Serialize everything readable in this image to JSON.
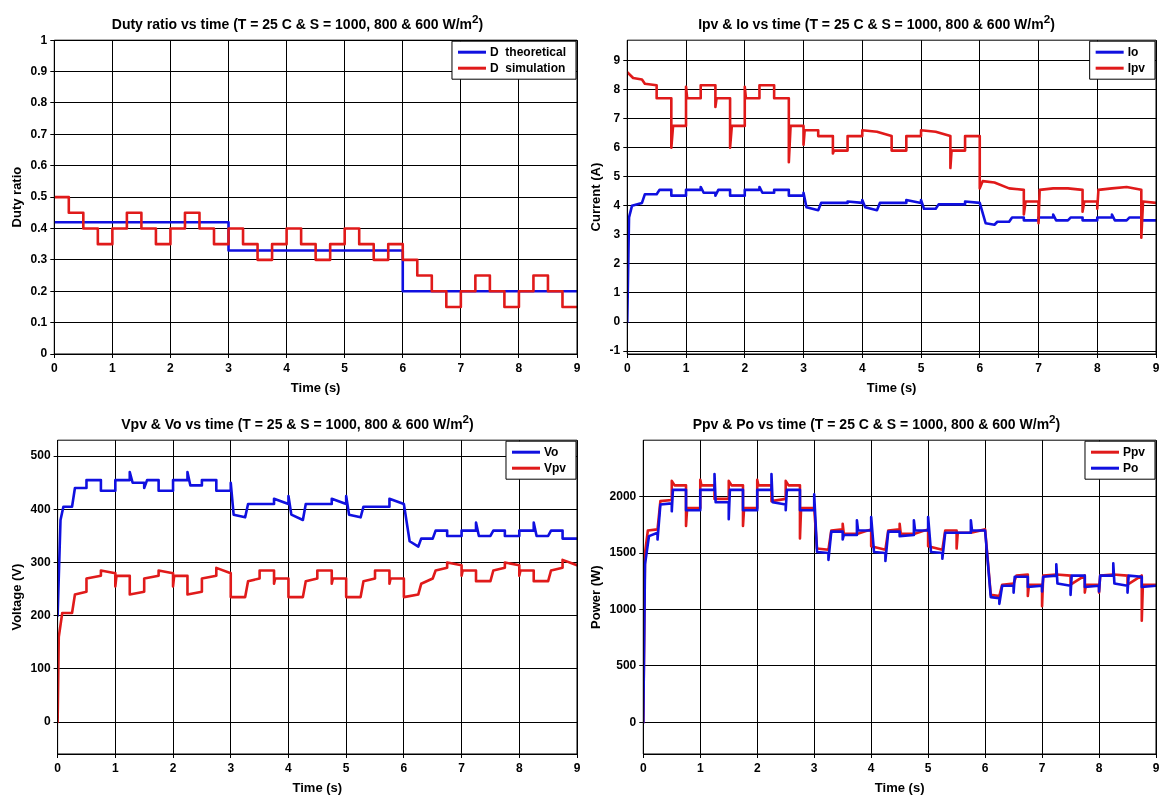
{
  "chart_data": [
    {
      "type": "line",
      "title": "Duty ratio vs time (T = 25 C & S = 1000, 800 & 600 W/m$^{2}$)",
      "xlabel": "Time (s)",
      "ylabel": "Duty ratio",
      "xlim": [
        0,
        9
      ],
      "xticks": [
        0,
        1,
        2,
        3,
        4,
        5,
        6,
        7,
        8,
        9
      ],
      "ylim": [
        0,
        1
      ],
      "yticks": [
        0,
        0.1,
        0.2,
        0.3,
        0.4,
        0.5,
        0.6,
        0.7,
        0.8,
        0.9,
        1
      ],
      "grid": true,
      "legend": "top right",
      "marker": "none",
      "line_style": "solid",
      "series": [
        {
          "name": "D  theoretical",
          "color": "#1010e0",
          "x": [
            0,
            3,
            3,
            6,
            6,
            9
          ],
          "values": [
            0.42,
            0.42,
            0.33,
            0.33,
            0.2,
            0.2
          ]
        },
        {
          "name": "D  simulation",
          "color": "#e01a1a",
          "x": [
            0,
            0.25,
            0.25,
            0.5,
            0.5,
            0.75,
            0.75,
            1,
            1,
            1.25,
            1.25,
            1.5,
            1.5,
            1.75,
            1.75,
            2,
            2,
            2.25,
            2.25,
            2.5,
            2.5,
            2.75,
            2.75,
            3,
            3,
            3.25,
            3.25,
            3.5,
            3.5,
            3.75,
            3.75,
            4,
            4,
            4.25,
            4.25,
            4.5,
            4.5,
            4.75,
            4.75,
            5,
            5,
            5.25,
            5.25,
            5.5,
            5.5,
            5.75,
            5.75,
            6,
            6,
            6.25,
            6.25,
            6.5,
            6.5,
            6.75,
            6.75,
            7,
            7,
            7.25,
            7.25,
            7.5,
            7.5,
            7.75,
            7.75,
            8,
            8,
            8.25,
            8.25,
            8.5,
            8.5,
            8.75,
            8.75,
            9
          ],
          "values": [
            0.5,
            0.5,
            0.45,
            0.45,
            0.4,
            0.4,
            0.35,
            0.35,
            0.4,
            0.4,
            0.45,
            0.45,
            0.4,
            0.4,
            0.35,
            0.35,
            0.4,
            0.4,
            0.45,
            0.45,
            0.4,
            0.4,
            0.35,
            0.35,
            0.4,
            0.4,
            0.35,
            0.35,
            0.3,
            0.3,
            0.35,
            0.35,
            0.4,
            0.4,
            0.35,
            0.35,
            0.3,
            0.3,
            0.35,
            0.35,
            0.4,
            0.4,
            0.35,
            0.35,
            0.3,
            0.3,
            0.35,
            0.35,
            0.3,
            0.3,
            0.25,
            0.25,
            0.2,
            0.2,
            0.15,
            0.15,
            0.2,
            0.2,
            0.25,
            0.25,
            0.2,
            0.2,
            0.15,
            0.15,
            0.2,
            0.2,
            0.25,
            0.25,
            0.2,
            0.2,
            0.15,
            0.15
          ]
        }
      ]
    },
    {
      "type": "line",
      "title": "Ipv & Io vs time (T = 25 C & S = 1000, 800 & 600 W/m$^{2}$)",
      "xlabel": "Time (s)",
      "ylabel": "Current (A)",
      "xlim": [
        0,
        9
      ],
      "xticks": [
        0,
        1,
        2,
        3,
        4,
        5,
        6,
        7,
        8,
        9
      ],
      "ylim": [
        -1.1,
        9.7
      ],
      "yticks": [
        -1,
        0,
        1,
        2,
        3,
        4,
        5,
        6,
        7,
        8,
        9
      ],
      "grid": true,
      "legend": "top right",
      "marker": "none",
      "line_style": "solid",
      "series": [
        {
          "name": "Io",
          "color": "#1010e0",
          "x": [
            0,
            0.03,
            0.08,
            0.25,
            0.3,
            0.5,
            0.55,
            0.75,
            0.75,
            1,
            1,
            1.25,
            1.25,
            1.3,
            1.5,
            1.5,
            1.55,
            1.75,
            1.75,
            2,
            2,
            2.25,
            2.25,
            2.3,
            2.5,
            2.5,
            2.75,
            2.75,
            3,
            3,
            3.05,
            3.25,
            3.3,
            3.75,
            3.75,
            4,
            4,
            4.05,
            4.25,
            4.3,
            4.75,
            4.75,
            5,
            5,
            5.05,
            5.25,
            5.3,
            5.75,
            5.75,
            6,
            6.1,
            6.25,
            6.3,
            6.5,
            6.55,
            6.75,
            6.75,
            7,
            7,
            7.25,
            7.25,
            7.3,
            7.5,
            7.55,
            7.75,
            7.75,
            8,
            8,
            8.25,
            8.25,
            8.3,
            8.5,
            8.55,
            8.75,
            8.75,
            9
          ],
          "values": [
            0,
            3.6,
            4.0,
            4.1,
            4.4,
            4.4,
            4.55,
            4.55,
            4.35,
            4.35,
            4.55,
            4.55,
            4.65,
            4.45,
            4.45,
            4.35,
            4.55,
            4.55,
            4.35,
            4.35,
            4.55,
            4.55,
            4.65,
            4.45,
            4.45,
            4.55,
            4.55,
            4.35,
            4.35,
            4.45,
            3.95,
            3.85,
            4.1,
            4.1,
            4.15,
            4.1,
            4.2,
            3.95,
            3.85,
            4.1,
            4.1,
            4.2,
            4.1,
            4.2,
            3.9,
            3.9,
            4.05,
            4.05,
            4.15,
            4.1,
            3.4,
            3.35,
            3.45,
            3.45,
            3.6,
            3.6,
            3.5,
            3.5,
            3.6,
            3.6,
            3.7,
            3.5,
            3.5,
            3.6,
            3.6,
            3.5,
            3.5,
            3.6,
            3.6,
            3.7,
            3.5,
            3.5,
            3.6,
            3.6,
            3.5,
            3.5
          ]
        },
        {
          "name": "Ipv",
          "color": "#e01a1a",
          "x": [
            0,
            0.1,
            0.25,
            0.3,
            0.5,
            0.5,
            0.75,
            0.75,
            0.78,
            1,
            1,
            1.02,
            1.25,
            1.25,
            1.5,
            1.5,
            1.52,
            1.75,
            1.75,
            1.78,
            2,
            2,
            2.02,
            2.25,
            2.25,
            2.5,
            2.5,
            2.75,
            2.75,
            2.78,
            3,
            3,
            3.02,
            3.25,
            3.25,
            3.5,
            3.5,
            3.52,
            3.75,
            3.75,
            4,
            4,
            4.25,
            4.5,
            4.5,
            4.75,
            4.75,
            5,
            5,
            5.25,
            5.5,
            5.5,
            5.52,
            5.75,
            5.75,
            6,
            6,
            6.05,
            6.25,
            6.5,
            6.75,
            6.75,
            6.78,
            7,
            7,
            7.02,
            7.25,
            7.5,
            7.75,
            7.75,
            7.78,
            8,
            8,
            8.02,
            8.25,
            8.5,
            8.75,
            8.75,
            8.78,
            9
          ],
          "values": [
            8.6,
            8.4,
            8.35,
            8.2,
            8.15,
            7.7,
            7.7,
            6.0,
            6.75,
            6.75,
            8.1,
            7.7,
            7.7,
            8.15,
            8.15,
            7.4,
            7.7,
            7.7,
            6.0,
            6.75,
            6.75,
            8.1,
            7.7,
            7.7,
            8.15,
            8.15,
            7.7,
            7.7,
            5.5,
            6.75,
            6.75,
            6.1,
            6.6,
            6.6,
            6.4,
            6.4,
            5.8,
            5.9,
            5.9,
            6.4,
            6.4,
            6.6,
            6.55,
            6.4,
            5.9,
            5.9,
            6.4,
            6.4,
            6.6,
            6.55,
            6.4,
            5.3,
            5.9,
            5.9,
            6.4,
            6.4,
            4.6,
            4.85,
            4.8,
            4.6,
            4.55,
            3.7,
            4.15,
            4.15,
            3.4,
            4.55,
            4.6,
            4.6,
            4.55,
            3.8,
            4.15,
            4.15,
            3.9,
            4.55,
            4.6,
            4.65,
            4.55,
            2.9,
            4.15,
            4.1
          ]
        }
      ]
    },
    {
      "type": "line",
      "title": "Vpv & Vo vs time (T = 25 & S = 1000, 800 & 600 W/m$^{2}$)",
      "xlabel": "Time (s)",
      "ylabel": "Voltage (V)",
      "xlim": [
        0,
        9
      ],
      "xticks": [
        0,
        1,
        2,
        3,
        4,
        5,
        6,
        7,
        8,
        9
      ],
      "ylim": [
        -60,
        530
      ],
      "yticks": [
        0,
        100,
        200,
        300,
        400,
        500
      ],
      "grid": true,
      "legend": "top right",
      "marker": "none",
      "line_style": "solid",
      "series": [
        {
          "name": "Vo",
          "color": "#1010e0",
          "x": [
            0,
            0.05,
            0.1,
            0.25,
            0.3,
            0.5,
            0.5,
            0.75,
            0.75,
            1,
            1,
            1.25,
            1.25,
            1.3,
            1.5,
            1.5,
            1.55,
            1.75,
            1.75,
            2,
            2,
            2.25,
            2.25,
            2.3,
            2.5,
            2.5,
            2.75,
            2.75,
            3,
            3,
            3.05,
            3.25,
            3.3,
            3.75,
            3.75,
            4,
            4,
            4.05,
            4.25,
            4.3,
            4.75,
            4.75,
            5,
            5,
            5.05,
            5.25,
            5.3,
            5.75,
            5.75,
            6,
            6.1,
            6.25,
            6.3,
            6.5,
            6.55,
            6.75,
            6.75,
            7,
            7,
            7.25,
            7.25,
            7.3,
            7.5,
            7.55,
            7.75,
            7.75,
            8,
            8,
            8.25,
            8.25,
            8.3,
            8.5,
            8.55,
            8.75,
            8.75,
            9
          ],
          "values": [
            200,
            380,
            405,
            405,
            440,
            440,
            455,
            455,
            435,
            435,
            455,
            455,
            470,
            450,
            450,
            440,
            455,
            455,
            435,
            435,
            455,
            455,
            470,
            445,
            445,
            455,
            455,
            435,
            435,
            450,
            390,
            385,
            410,
            410,
            420,
            410,
            425,
            390,
            380,
            410,
            410,
            420,
            410,
            425,
            390,
            385,
            405,
            405,
            420,
            410,
            340,
            330,
            345,
            345,
            360,
            360,
            350,
            350,
            360,
            360,
            375,
            350,
            350,
            360,
            360,
            350,
            350,
            360,
            360,
            375,
            350,
            350,
            360,
            360,
            345,
            345
          ]
        },
        {
          "name": "Vpv",
          "color": "#e01a1a",
          "x": [
            0,
            0.02,
            0.08,
            0.25,
            0.3,
            0.5,
            0.5,
            0.75,
            0.75,
            1,
            1,
            1.02,
            1.25,
            1.25,
            1.5,
            1.5,
            1.75,
            1.75,
            2,
            2,
            2.02,
            2.25,
            2.25,
            2.5,
            2.5,
            2.75,
            2.75,
            3,
            3,
            3.25,
            3.3,
            3.5,
            3.5,
            3.75,
            3.75,
            3.77,
            4,
            4,
            4.25,
            4.3,
            4.5,
            4.5,
            4.75,
            4.75,
            4.77,
            5,
            5,
            5.25,
            5.3,
            5.5,
            5.5,
            5.75,
            5.75,
            5.77,
            6,
            6,
            6.25,
            6.3,
            6.5,
            6.55,
            6.75,
            6.75,
            7,
            7,
            7.02,
            7.25,
            7.25,
            7.5,
            7.55,
            7.75,
            7.75,
            8,
            8,
            8.02,
            8.25,
            8.25,
            8.5,
            8.55,
            8.75,
            8.75,
            9
          ],
          "values": [
            0,
            160,
            205,
            205,
            240,
            245,
            270,
            275,
            285,
            280,
            255,
            275,
            275,
            240,
            245,
            270,
            275,
            285,
            280,
            255,
            275,
            275,
            240,
            245,
            270,
            275,
            290,
            280,
            235,
            235,
            265,
            270,
            285,
            285,
            260,
            270,
            270,
            235,
            235,
            265,
            270,
            285,
            285,
            260,
            270,
            270,
            235,
            235,
            265,
            270,
            285,
            285,
            260,
            270,
            270,
            235,
            240,
            260,
            270,
            285,
            290,
            300,
            295,
            275,
            285,
            285,
            265,
            265,
            285,
            290,
            300,
            295,
            275,
            285,
            285,
            265,
            265,
            285,
            290,
            305,
            295
          ]
        }
      ]
    },
    {
      "type": "line",
      "title": "Ppv & Po vs time (T = 25 C & S = 1000, 800 & 600 W/m$^{2}$)",
      "xlabel": "Time (s)",
      "ylabel": "Power (W)",
      "xlim": [
        0,
        9
      ],
      "xticks": [
        0,
        1,
        2,
        3,
        4,
        5,
        6,
        7,
        8,
        9
      ],
      "ylim": [
        -280,
        2500
      ],
      "yticks": [
        0,
        500,
        1000,
        1500,
        2000
      ],
      "grid": true,
      "legend": "top right",
      "marker": "none",
      "line_style": "solid",
      "series": [
        {
          "name": "Ppv",
          "color": "#e01a1a",
          "x": [
            0,
            0.03,
            0.08,
            0.25,
            0.3,
            0.5,
            0.5,
            0.55,
            0.75,
            0.75,
            0.77,
            1,
            1,
            1.02,
            1.25,
            1.25,
            1.5,
            1.5,
            1.55,
            1.75,
            1.75,
            1.77,
            2,
            2,
            2.02,
            2.25,
            2.25,
            2.5,
            2.5,
            2.55,
            2.75,
            2.75,
            2.77,
            3,
            3.05,
            3.25,
            3.3,
            3.5,
            3.5,
            3.52,
            3.75,
            4,
            4,
            4.25,
            4.3,
            4.5,
            4.5,
            4.52,
            4.75,
            5,
            5,
            5.25,
            5.3,
            5.5,
            5.5,
            5.52,
            5.75,
            6,
            6.1,
            6.25,
            6.3,
            6.5,
            6.55,
            6.75,
            6.75,
            6.77,
            7,
            7,
            7.02,
            7.25,
            7.5,
            7.5,
            7.75,
            7.75,
            7.77,
            8,
            8,
            8.02,
            8.25,
            8.5,
            8.5,
            8.75,
            8.75,
            8.77,
            9
          ],
          "values": [
            0,
            1500,
            1700,
            1710,
            1960,
            1970,
            2140,
            2100,
            2100,
            1740,
            1900,
            1900,
            2150,
            2100,
            2100,
            1980,
            1980,
            2140,
            2100,
            2100,
            1740,
            1900,
            1900,
            2150,
            2100,
            2100,
            1960,
            1980,
            2140,
            2100,
            2100,
            1630,
            1900,
            1900,
            1540,
            1530,
            1700,
            1710,
            1760,
            1670,
            1670,
            1710,
            1560,
            1530,
            1700,
            1710,
            1760,
            1670,
            1670,
            1710,
            1560,
            1530,
            1700,
            1700,
            1540,
            1680,
            1680,
            1710,
            1130,
            1120,
            1220,
            1230,
            1300,
            1310,
            1120,
            1220,
            1220,
            1030,
            1300,
            1310,
            1300,
            1220,
            1300,
            1150,
            1220,
            1220,
            1150,
            1300,
            1310,
            1300,
            1220,
            1300,
            900,
            1220,
            1220
          ]
        },
        {
          "name": "Po",
          "color": "#1010e0",
          "x": [
            0,
            0.03,
            0.1,
            0.25,
            0.25,
            0.3,
            0.5,
            0.5,
            0.52,
            0.75,
            0.75,
            1,
            1,
            1.25,
            1.25,
            1.27,
            1.5,
            1.5,
            1.52,
            1.75,
            1.75,
            2,
            2,
            2.25,
            2.25,
            2.27,
            2.5,
            2.5,
            2.52,
            2.75,
            2.75,
            3,
            3,
            3.05,
            3.25,
            3.25,
            3.3,
            3.5,
            3.5,
            3.52,
            3.75,
            3.75,
            3.77,
            4,
            4,
            4.05,
            4.25,
            4.25,
            4.3,
            4.5,
            4.5,
            4.75,
            4.75,
            4.77,
            5,
            5,
            5.05,
            5.25,
            5.25,
            5.3,
            5.75,
            5.75,
            5.77,
            6,
            6.1,
            6.25,
            6.25,
            6.3,
            6.5,
            6.5,
            6.52,
            6.75,
            6.75,
            7,
            7,
            7.02,
            7.25,
            7.25,
            7.27,
            7.5,
            7.5,
            7.52,
            7.75,
            7.75,
            8,
            8,
            8.02,
            8.25,
            8.25,
            8.27,
            8.5,
            8.5,
            8.52,
            8.75,
            8.75,
            9
          ],
          "values": [
            0,
            1400,
            1650,
            1680,
            1620,
            1930,
            1940,
            1870,
            2060,
            2060,
            1880,
            1880,
            2060,
            2060,
            2200,
            1950,
            1950,
            1800,
            2060,
            2060,
            1880,
            1880,
            2060,
            2060,
            2200,
            1950,
            1930,
            1880,
            2060,
            2060,
            1880,
            1880,
            2020,
            1510,
            1500,
            1440,
            1690,
            1690,
            1620,
            1660,
            1660,
            1790,
            1700,
            1700,
            1820,
            1510,
            1500,
            1430,
            1690,
            1690,
            1650,
            1660,
            1790,
            1700,
            1700,
            1820,
            1510,
            1500,
            1450,
            1680,
            1680,
            1790,
            1700,
            1700,
            1110,
            1100,
            1050,
            1210,
            1210,
            1150,
            1290,
            1290,
            1200,
            1210,
            1160,
            1290,
            1300,
            1400,
            1230,
            1210,
            1130,
            1300,
            1300,
            1200,
            1210,
            1160,
            1300,
            1300,
            1410,
            1230,
            1210,
            1150,
            1300,
            1290,
            1200,
            1210
          ]
        }
      ]
    }
  ]
}
